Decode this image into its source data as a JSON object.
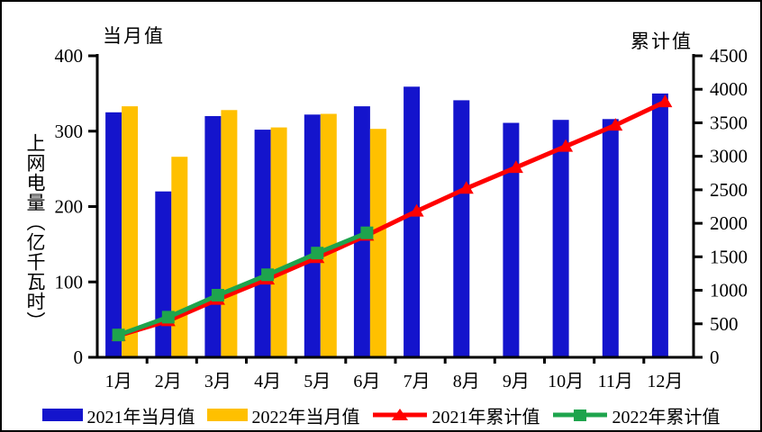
{
  "chart_data": {
    "type": "bar",
    "subtype": "combo-bar-line-dual-axis",
    "axis_titles": {
      "left": "当月值",
      "right": "累计值"
    },
    "y_left": {
      "label": "上网电量（亿千瓦时）",
      "min": 0,
      "max": 400,
      "ticks": [
        0,
        100,
        200,
        300,
        400
      ]
    },
    "y_right": {
      "min": 0,
      "max": 4500,
      "ticks": [
        0,
        500,
        1000,
        1500,
        2000,
        2500,
        3000,
        3500,
        4000,
        4500
      ]
    },
    "categories": [
      "1月",
      "2月",
      "3月",
      "4月",
      "5月",
      "6月",
      "7月",
      "8月",
      "9月",
      "10月",
      "11月",
      "12月"
    ],
    "series": [
      {
        "name": "2021年当月值",
        "type": "bar",
        "axis": "left",
        "color": "#1414CC",
        "marker": "none",
        "values": [
          325,
          220,
          320,
          302,
          322,
          333,
          359,
          341,
          311,
          315,
          316,
          350
        ]
      },
      {
        "name": "2022年当月值",
        "type": "bar",
        "axis": "left",
        "color": "#FFC000",
        "marker": "none",
        "values": [
          333,
          266,
          328,
          305,
          323,
          303,
          null,
          null,
          null,
          null,
          null,
          null
        ]
      },
      {
        "name": "2021年累计值",
        "type": "line",
        "axis": "right",
        "color": "#FF0000",
        "marker": "triangle",
        "values": [
          325,
          545,
          865,
          1167,
          1489,
          1822,
          2181,
          2522,
          2833,
          3148,
          3464,
          3814
        ]
      },
      {
        "name": "2022年累计值",
        "type": "line",
        "axis": "right",
        "color": "#1EA44D",
        "marker": "square",
        "values": [
          333,
          599,
          927,
          1232,
          1555,
          1858,
          null,
          null,
          null,
          null,
          null,
          null
        ]
      }
    ],
    "legend_position": "bottom",
    "grid": false
  }
}
